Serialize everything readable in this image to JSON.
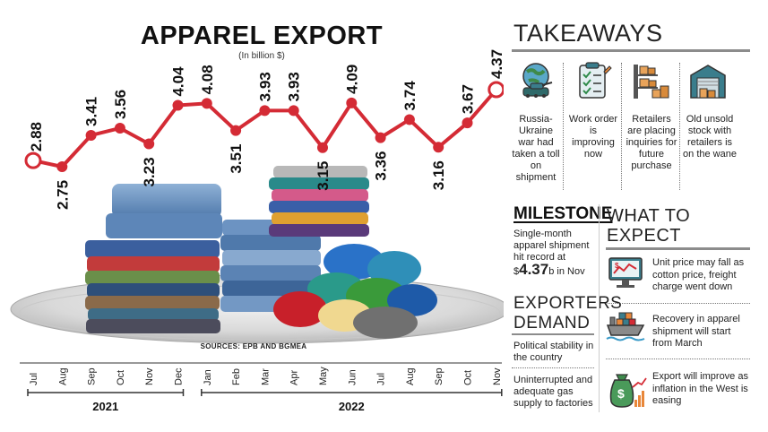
{
  "chart_data": {
    "type": "line",
    "title": "APPAREL EXPORT",
    "subtitle": "(In billion $)",
    "x": [
      "Jul",
      "Aug",
      "Sep",
      "Oct",
      "Nov",
      "Dec",
      "Jan",
      "Feb",
      "Mar",
      "Apr",
      "May",
      "Jun",
      "Jul",
      "Aug",
      "Sep",
      "Oct",
      "Nov"
    ],
    "values": [
      2.88,
      2.75,
      3.41,
      3.56,
      3.23,
      4.04,
      4.08,
      3.51,
      3.93,
      3.93,
      3.15,
      4.09,
      3.36,
      3.74,
      3.16,
      3.67,
      4.37
    ],
    "value_labels": [
      "2.88",
      "2.75",
      "3.41",
      "3.56",
      "3.23",
      "4.04",
      "4.08",
      "3.51",
      "3.93",
      "3.93",
      "3.15",
      "4.09",
      "3.36",
      "3.74",
      "3.16",
      "3.67",
      "4.37"
    ],
    "years": [
      {
        "label": "2021",
        "from": 0,
        "to": 5
      },
      {
        "label": "2022",
        "from": 6,
        "to": 16
      }
    ],
    "line_color": "#d42b35",
    "source": "SOURCES: EPB AND BGMEA"
  },
  "takeaways": {
    "title": "TAKEAWAYS",
    "items": [
      {
        "icon": "globe-tank-icon",
        "text": "Russia-Ukraine war had taken a toll on shipment"
      },
      {
        "icon": "clipboard-checklist-icon",
        "text": "Work order is improving now"
      },
      {
        "icon": "shelf-boxes-icon",
        "text": "Retailers are placing inquiries for future purchase"
      },
      {
        "icon": "warehouse-icon",
        "text": "Old unsold stock with retailers is on the wane"
      }
    ]
  },
  "milestone": {
    "title": "MILESTONE",
    "text_before": "Single-month apparel shipment hit record at",
    "value_prefix": "$",
    "value": "4.37",
    "value_suffix": "b in Nov"
  },
  "exporters": {
    "title": "EXPORTERS DEMAND",
    "items": [
      "Political stability in the country",
      "Uninterrupted and adequate gas supply to factories"
    ]
  },
  "expect": {
    "title": "WHAT TO EXPECT",
    "items": [
      {
        "icon": "monitor-price-chart-icon",
        "text": "Unit price may fall as cotton price, freight charge went down"
      },
      {
        "icon": "cargo-ship-icon",
        "text": "Recovery in apparel shipment will start from March"
      },
      {
        "icon": "money-bag-growth-icon",
        "text": "Export will improve as inflation in the West is easing"
      }
    ]
  },
  "colors": {
    "accent_red": "#d42b35",
    "icon_teal": "#3a7d8c",
    "icon_orange": "#e8873a"
  }
}
